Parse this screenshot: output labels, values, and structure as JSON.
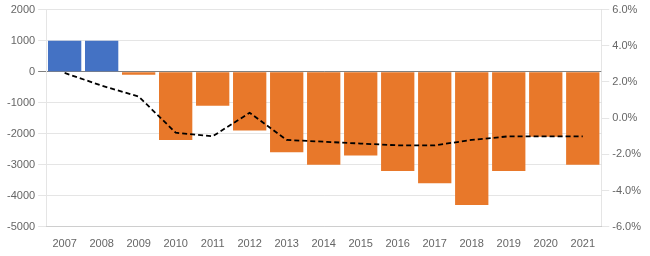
{
  "chart_data": {
    "type": "bar",
    "categories": [
      "2007",
      "2008",
      "2009",
      "2010",
      "2011",
      "2012",
      "2013",
      "2014",
      "2015",
      "2016",
      "2017",
      "2018",
      "2019",
      "2020",
      "2021"
    ],
    "series": [
      {
        "type": "bar",
        "colors": [
          "#4472C4",
          "#4472C4",
          "#E8782A",
          "#E8782A",
          "#E8782A",
          "#E8782A",
          "#E8782A",
          "#E8782A",
          "#E8782A",
          "#E8782A",
          "#E8782A",
          "#E8782A",
          "#E8782A",
          "#E8782A",
          "#E8782A"
        ],
        "values": [
          1000,
          1000,
          -100,
          -2200,
          -1100,
          -1900,
          -2600,
          -3000,
          -2700,
          -3200,
          -3600,
          -4300,
          -3200,
          -2100,
          -3000
        ]
      },
      {
        "type": "line",
        "color": "#000000",
        "line_style": "dashed",
        "axis": "y2",
        "values": [
          0.025,
          0.018,
          0.012,
          -0.008,
          -0.01,
          0.003,
          -0.012,
          -0.013,
          -0.014,
          -0.015,
          -0.015,
          -0.012,
          -0.01,
          -0.01,
          -0.01
        ]
      }
    ],
    "ylim": [
      -5000,
      2000
    ],
    "yticks": [
      -5000,
      -4000,
      -3000,
      -2000,
      -1000,
      0,
      1000,
      2000
    ],
    "y2lim": [
      -0.06,
      0.06
    ],
    "y2ticks": [
      {
        "value": -0.06,
        "label": "-6.0%"
      },
      {
        "value": -0.04,
        "label": "-4.0%"
      },
      {
        "value": -0.02,
        "label": "-2.0%"
      },
      {
        "value": 0.0,
        "label": "0.0%"
      },
      {
        "value": 0.02,
        "label": "2.0%"
      },
      {
        "value": 0.04,
        "label": "4.0%"
      },
      {
        "value": 0.06,
        "label": "6.0%"
      }
    ],
    "grid": true
  }
}
